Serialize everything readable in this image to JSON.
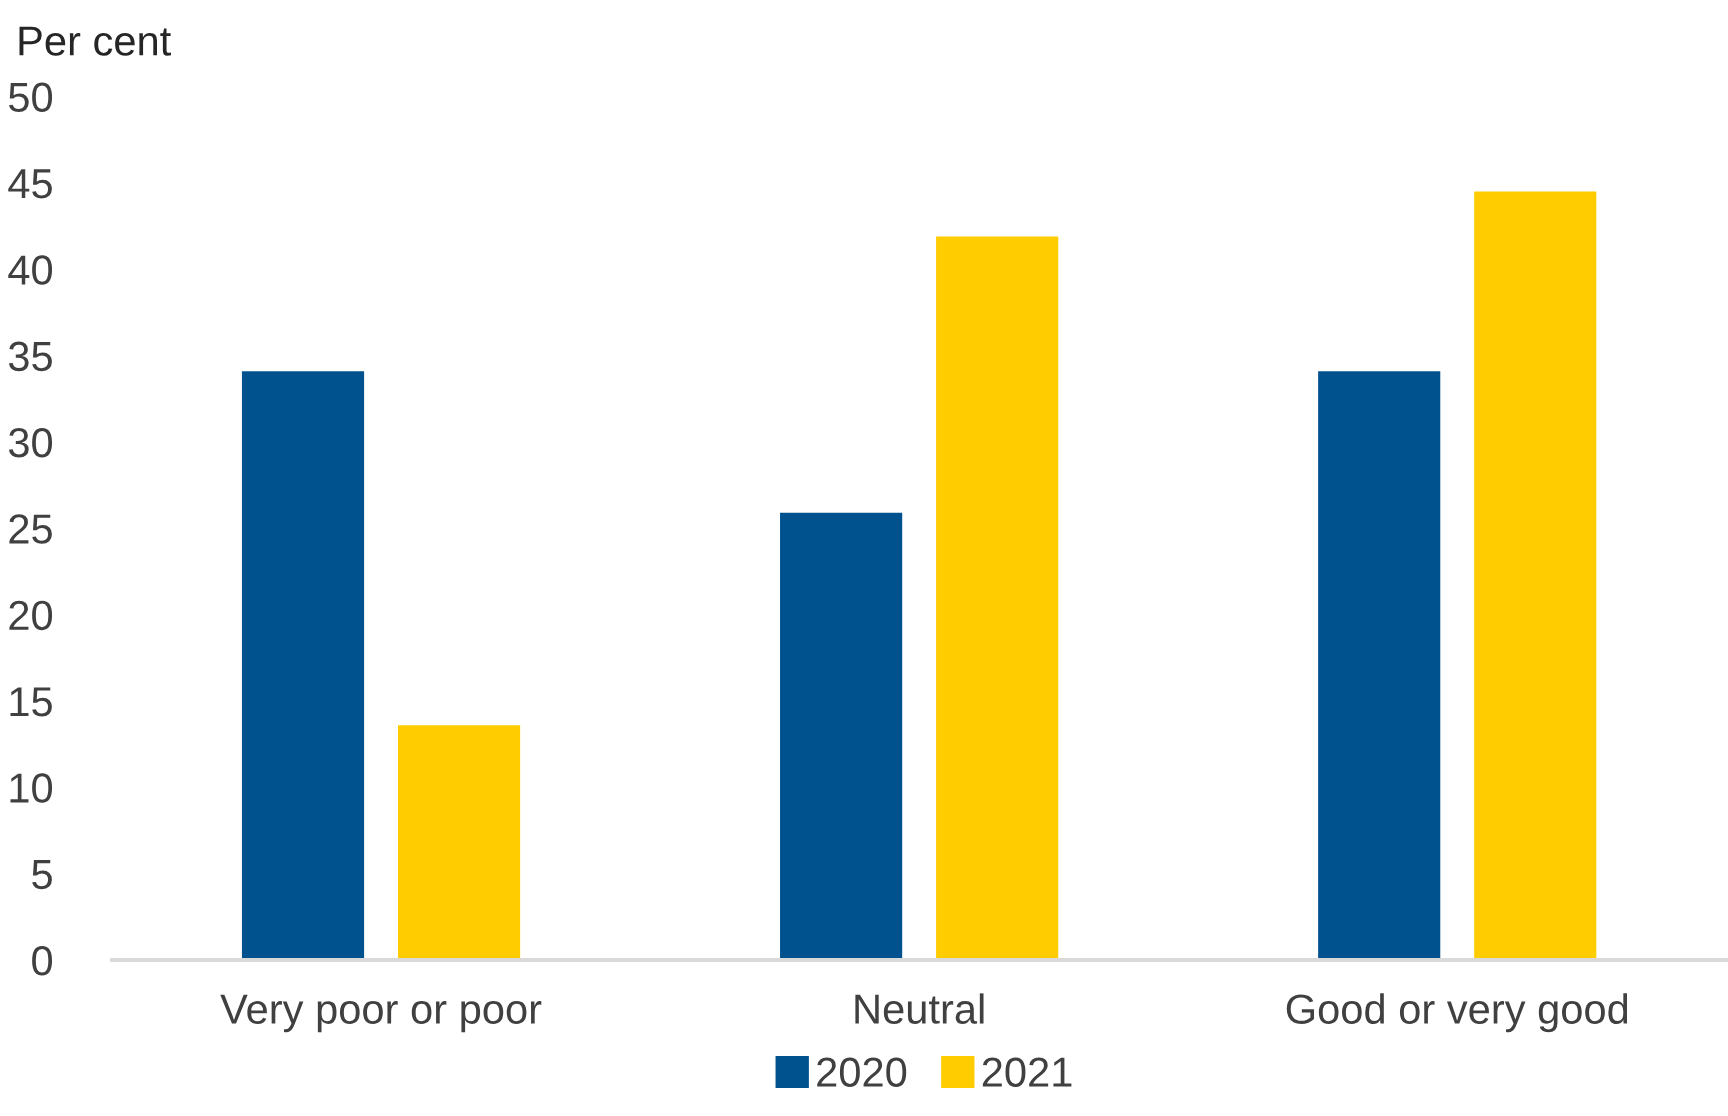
{
  "chart_data": {
    "type": "bar",
    "ylabel": "Per cent",
    "categories": [
      "Very poor or poor",
      "Neutral",
      "Good or very good"
    ],
    "series": [
      {
        "name": "2020",
        "color": "#00528f",
        "values": [
          34.1,
          25.9,
          34.1
        ]
      },
      {
        "name": "2021",
        "color": "#ffcc00",
        "values": [
          13.6,
          41.9,
          44.5
        ]
      }
    ],
    "ylim": [
      0,
      50
    ],
    "yticks": [
      0,
      5,
      10,
      15,
      20,
      25,
      30,
      35,
      40,
      45,
      50
    ],
    "grid": false,
    "legend": "bottom"
  }
}
